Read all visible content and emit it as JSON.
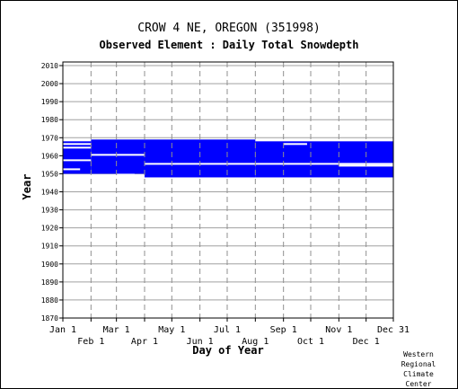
{
  "chart_data": {
    "type": "heatmap",
    "title": "CROW 4 NE, OREGON   (351998)",
    "subtitle": "Observed Element : Daily Total Snowdepth",
    "xlabel": "Day of Year",
    "ylabel": "Year",
    "xlim": [
      1,
      365
    ],
    "ylim": [
      1870,
      2012
    ],
    "grid": true,
    "yticks": [
      1870,
      1880,
      1890,
      1900,
      1910,
      1920,
      1930,
      1940,
      1950,
      1960,
      1970,
      1980,
      1990,
      2000,
      2010
    ],
    "xticks_top": [
      {
        "label": "Jan 1",
        "day": 1
      },
      {
        "label": "Mar 1",
        "day": 60
      },
      {
        "label": "May 1",
        "day": 121
      },
      {
        "label": "Jul 1",
        "day": 182
      },
      {
        "label": "Sep 1",
        "day": 244
      },
      {
        "label": "Nov 1",
        "day": 305
      },
      {
        "label": "Dec 31",
        "day": 365
      }
    ],
    "xticks_bottom": [
      {
        "label": "Feb 1",
        "day": 32
      },
      {
        "label": "Apr 1",
        "day": 91
      },
      {
        "label": "Jun 1",
        "day": 152
      },
      {
        "label": "Aug 1",
        "day": 213
      },
      {
        "label": "Oct 1",
        "day": 274
      },
      {
        "label": "Dec 1",
        "day": 335
      }
    ],
    "gridlines_dashed_days": [
      32,
      60,
      91,
      121,
      152,
      182,
      213,
      244,
      274,
      305,
      335
    ],
    "data_color": "#0000ff",
    "coverage": [
      {
        "day_start": 1,
        "day_end": 32,
        "year_start": 1950,
        "year_end": 1967
      },
      {
        "day_start": 32,
        "day_end": 91,
        "year_start": 1950,
        "year_end": 1968
      },
      {
        "day_start": 91,
        "day_end": 213,
        "year_start": 1948,
        "year_end": 1968
      },
      {
        "day_start": 213,
        "day_end": 365,
        "year_start": 1948,
        "year_end": 1967
      }
    ],
    "gaps": [
      {
        "day_start": 1,
        "day_end": 32,
        "year": 1966
      },
      {
        "day_start": 1,
        "day_end": 32,
        "year": 1964
      },
      {
        "day_start": 1,
        "day_end": 32,
        "year": 1957
      },
      {
        "day_start": 1,
        "day_end": 20,
        "year": 1952
      },
      {
        "day_start": 32,
        "day_end": 91,
        "year": 1960
      },
      {
        "day_start": 91,
        "day_end": 365,
        "year": 1955
      },
      {
        "day_start": 60,
        "day_end": 80,
        "year": 1949
      },
      {
        "day_start": 244,
        "day_end": 270,
        "year": 1966
      },
      {
        "day_start": 305,
        "day_end": 335,
        "year": 1954
      },
      {
        "day_start": 335,
        "day_end": 365,
        "year": 1954
      }
    ]
  },
  "credit": [
    "Western",
    "Regional",
    "Climate",
    "Center"
  ]
}
